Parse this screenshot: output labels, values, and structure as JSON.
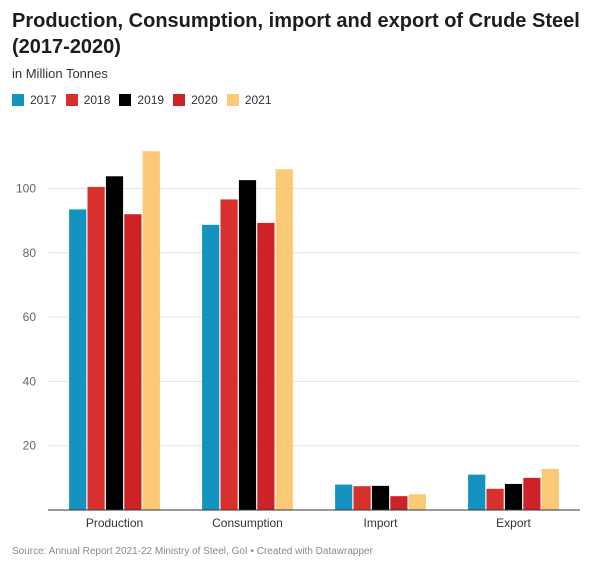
{
  "title": "Production, Consumption, import and export of Crude Steel (2017-2020)",
  "subtitle": "in Million Tonnes",
  "source": "Source: Annual Report 2021-22 Ministry of Steel, GoI • Created with Datawrapper",
  "chart_data": {
    "type": "bar",
    "categories": [
      "Production",
      "Consumption",
      "Import",
      "Export"
    ],
    "series": [
      {
        "name": "2017",
        "color": "#1593c0",
        "values": [
          93.5,
          88.7,
          7.9,
          11.0
        ]
      },
      {
        "name": "2018",
        "color": "#d7302d",
        "values": [
          100.5,
          96.6,
          7.4,
          6.6
        ]
      },
      {
        "name": "2019",
        "color": "#000000",
        "values": [
          103.8,
          102.6,
          7.5,
          8.1
        ]
      },
      {
        "name": "2020",
        "color": "#ce2229",
        "values": [
          92.0,
          89.3,
          4.3,
          10.0
        ]
      },
      {
        "name": "2021",
        "color": "#fcc977",
        "values": [
          111.6,
          106.0,
          4.9,
          12.8
        ]
      }
    ],
    "yticks": [
      20,
      40,
      60,
      80,
      100
    ],
    "ylim": [
      0,
      115
    ],
    "grid": true,
    "legend": "top-left"
  }
}
